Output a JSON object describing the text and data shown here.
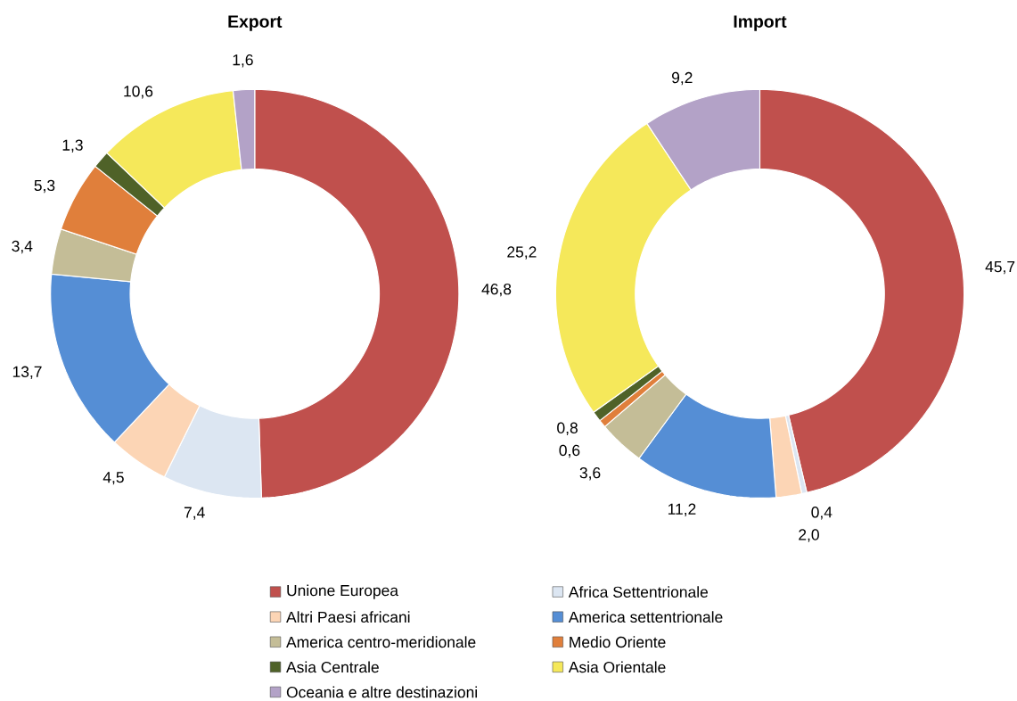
{
  "chart_data": [
    {
      "type": "donut",
      "title": "Export",
      "legend": "bottom",
      "data_labels": true,
      "categories": [
        "Unione Europea",
        "Africa Settentrionale",
        "Altri Paesi africani",
        "America settentrionale",
        "America centro-meridionale",
        "Medio Oriente",
        "Asia Centrale",
        "Asia Orientale",
        "Oceania e altre destinazioni"
      ],
      "values": [
        46.8,
        7.4,
        4.5,
        13.7,
        3.4,
        5.3,
        1.3,
        10.6,
        1.6
      ],
      "value_labels": [
        "46,8",
        "7,4",
        "4,5",
        "13,7",
        "3,4",
        "5,3",
        "1,3",
        "10,6",
        "1,6"
      ],
      "colors": [
        "#c0504d",
        "#dce6f2",
        "#fcd5b5",
        "#558ed5",
        "#c4bd97",
        "#e07f3b",
        "#4f6228",
        "#f5e85a",
        "#b3a2c7"
      ]
    },
    {
      "type": "donut",
      "title": "Import",
      "data_labels": true,
      "values": [
        45.7,
        0.4,
        2.0,
        11.2,
        3.6,
        0.6,
        0.8,
        25.2,
        9.2
      ],
      "value_labels": [
        "45,7",
        "0,4",
        "2,0",
        "11,2",
        "3,6",
        "0,6",
        "0,8",
        "25,2",
        "9,2"
      ],
      "colors": [
        "#c0504d",
        "#dce6f2",
        "#fcd5b5",
        "#558ed5",
        "#c4bd97",
        "#e07f3b",
        "#4f6228",
        "#f5e85a",
        "#b3a2c7"
      ]
    }
  ]
}
